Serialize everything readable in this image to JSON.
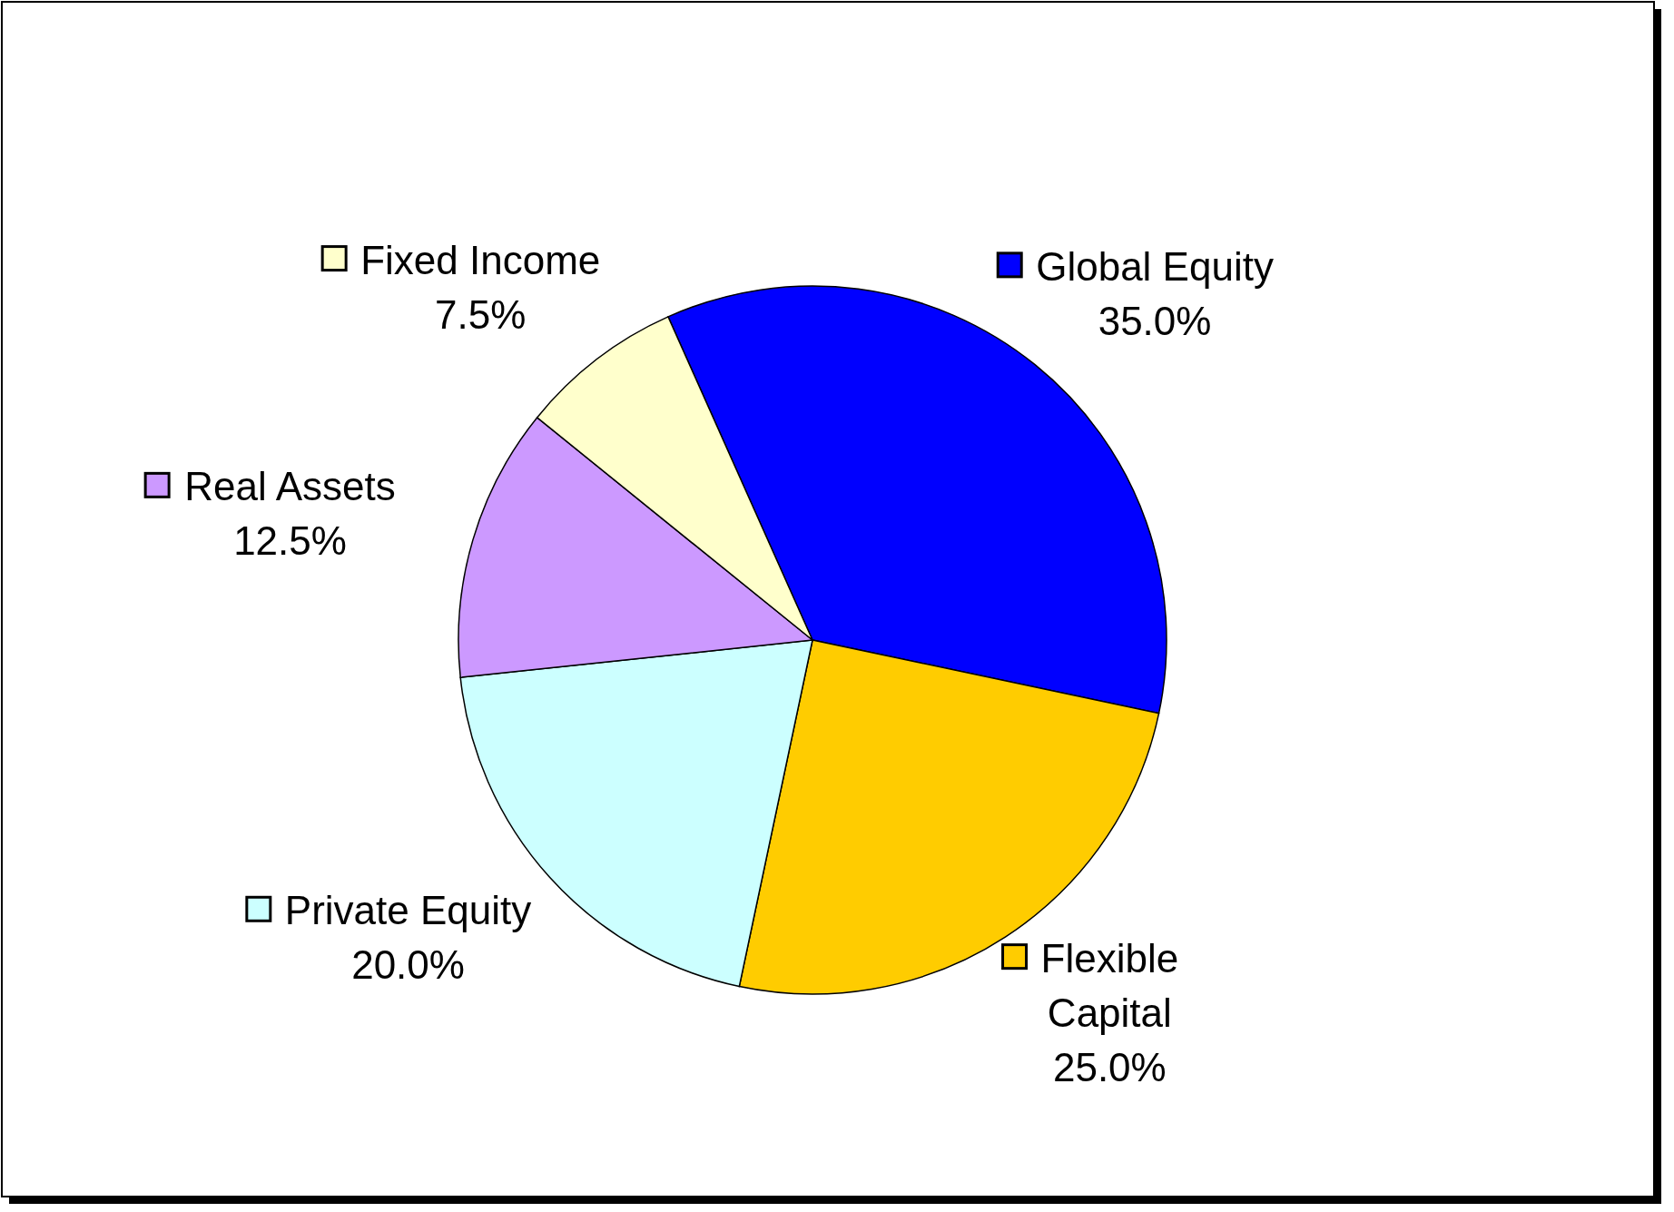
{
  "chart_data": {
    "type": "pie",
    "categories": [
      "Global Equity",
      "Flexible Capital",
      "Private Equity",
      "Real Assets",
      "Fixed Income"
    ],
    "values": [
      35.0,
      25.0,
      20.0,
      12.5,
      7.5
    ],
    "value_labels": [
      "35.0%",
      "25.0%",
      "20.0%",
      "12.5%",
      "7.5%"
    ],
    "colors": [
      "#0000ff",
      "#ffcc00",
      "#ccffff",
      "#cc99ff",
      "#ffffcc"
    ],
    "legend": "bottom left"
  }
}
